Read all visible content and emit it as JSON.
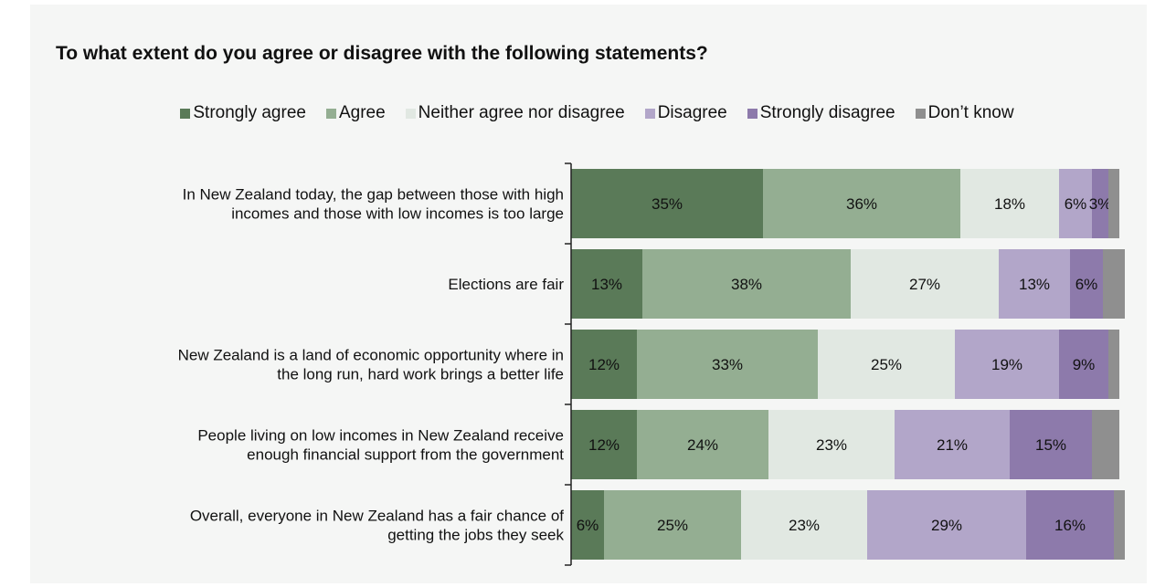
{
  "chart_data": {
    "type": "bar",
    "orientation": "horizontal-stacked-100",
    "title": "To what extent do you agree or disagree with the following statements?",
    "legend_position": "top",
    "grid": false,
    "xlim": [
      0,
      100
    ],
    "series": [
      {
        "name": "Strongly agree",
        "color": "#5a7a58"
      },
      {
        "name": "Agree",
        "color": "#94ae92"
      },
      {
        "name": "Neither agree nor disagree",
        "color": "#e1e8e2"
      },
      {
        "name": "Disagree",
        "color": "#b2a6c9"
      },
      {
        "name": "Strongly disagree",
        "color": "#8d7aab"
      },
      {
        "name": "Don’t know",
        "color": "#8f8f8f"
      }
    ],
    "categories": [
      {
        "label_lines": [
          "In New Zealand today, the gap between those with high",
          "incomes and those with low incomes is too large"
        ],
        "values": [
          35,
          36,
          18,
          6,
          3,
          2
        ],
        "labels": [
          "35%",
          "36%",
          "18%",
          "6%",
          "3%",
          ""
        ]
      },
      {
        "label_lines": [
          "Elections are fair"
        ],
        "values": [
          13,
          38,
          27,
          13,
          6,
          4
        ],
        "labels": [
          "13%",
          "38%",
          "27%",
          "13%",
          "6%",
          ""
        ]
      },
      {
        "label_lines": [
          "New Zealand is a land of economic opportunity where in",
          "the long run, hard work brings a better life"
        ],
        "values": [
          12,
          33,
          25,
          19,
          9,
          2
        ],
        "labels": [
          "12%",
          "33%",
          "25%",
          "19%",
          "9%",
          ""
        ]
      },
      {
        "label_lines": [
          "People living on low incomes in New Zealand receive",
          "enough financial support from the government"
        ],
        "values": [
          12,
          24,
          23,
          21,
          15,
          5
        ],
        "labels": [
          "12%",
          "24%",
          "23%",
          "21%",
          "15%",
          ""
        ]
      },
      {
        "label_lines": [
          "Overall, everyone in New Zealand has a fair chance of",
          "getting the jobs they seek"
        ],
        "values": [
          6,
          25,
          23,
          29,
          16,
          2
        ],
        "labels": [
          "6%",
          "25%",
          "23%",
          "29%",
          "16%",
          ""
        ]
      }
    ]
  }
}
